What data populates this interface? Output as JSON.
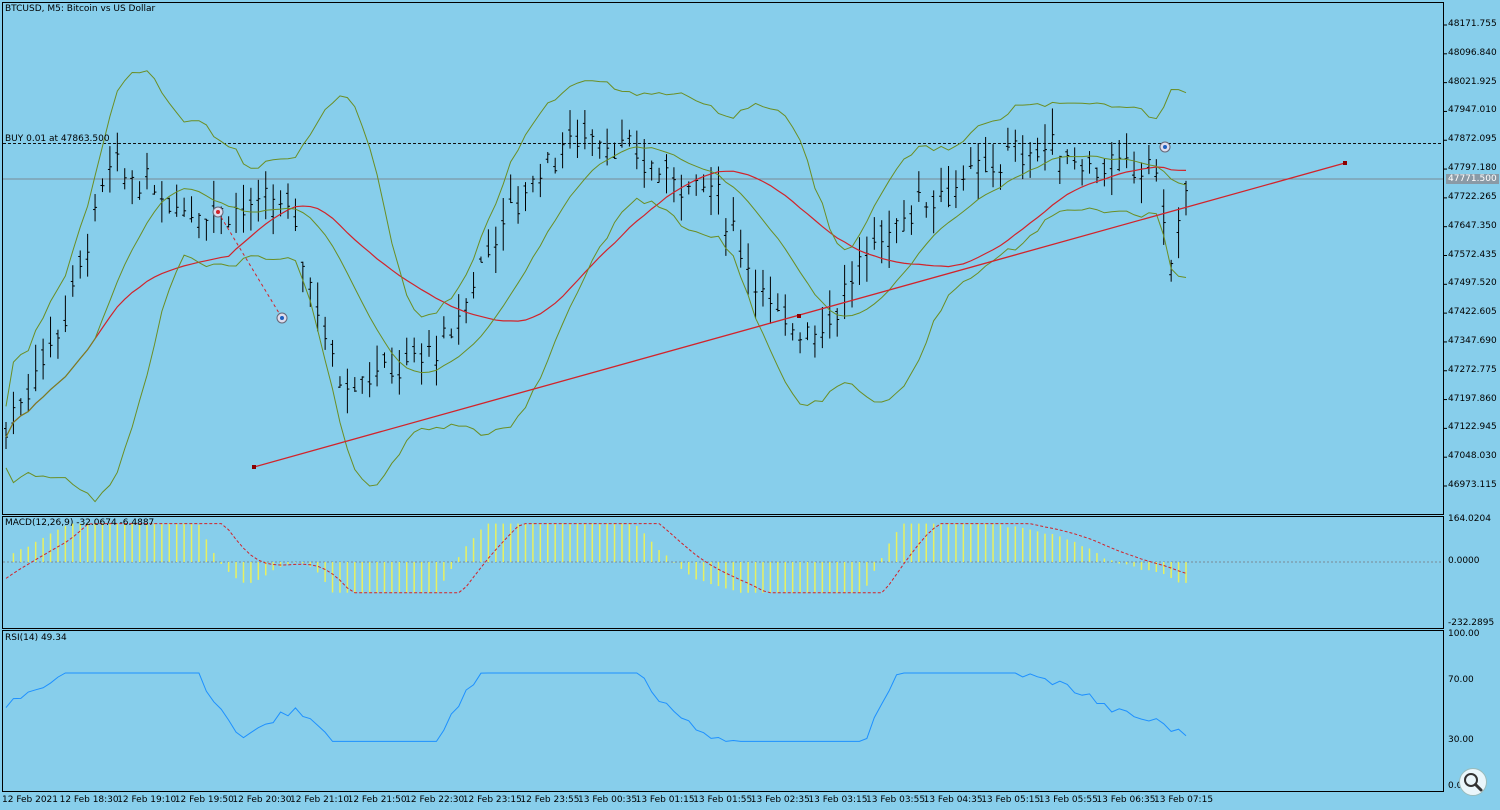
{
  "chart_data": [
    {
      "type": "candlestick",
      "title": "BTCUSD, M5:  Bitcoin vs US Dollar",
      "y_ticks": [
        "48171.755",
        "48096.840",
        "48021.925",
        "47947.010",
        "47872.095",
        "47797.180",
        "47722.265",
        "47647.350",
        "47572.435",
        "47497.520",
        "47422.605",
        "47347.690",
        "47272.775",
        "47197.860",
        "47122.945",
        "47048.030",
        "46973.115"
      ],
      "ylim": [
        46930,
        48210
      ],
      "current_price": "47771.500",
      "order_label": "BUY 0.01 at 47863.500",
      "order_price": 47863.5,
      "x_ticks": [
        "12 Feb 2021",
        "12 Feb 18:30",
        "12 Feb 19:10",
        "12 Feb 19:50",
        "12 Feb 20:30",
        "12 Feb 21:10",
        "12 Feb 21:50",
        "12 Feb 22:30",
        "12 Feb 23:15",
        "12 Feb 23:55",
        "13 Feb 00:35",
        "13 Feb 01:15",
        "13 Feb 01:55",
        "13 Feb 02:35",
        "13 Feb 03:15",
        "13 Feb 03:55",
        "13 Feb 04:35",
        "13 Feb 05:15",
        "13 Feb 05:55",
        "13 Feb 06:35",
        "13 Feb 07:15"
      ],
      "indicators": [
        "Bollinger Bands",
        "Moving Average",
        "Trendline"
      ]
    },
    {
      "type": "histogram",
      "title": "MACD(12,26,9) -32.0674 -6.4887",
      "y_ticks": [
        "164.0204",
        "0.0000",
        "-232.2895"
      ],
      "ylim": [
        -232.2895,
        164.0204
      ]
    },
    {
      "type": "line",
      "title": "RSI(14) 49.34",
      "y_ticks": [
        "100.00",
        "70.00",
        "30.00",
        "0.00"
      ],
      "ylim": [
        0,
        100
      ]
    }
  ],
  "icons": {
    "zoom": "magnifier-icon"
  },
  "colors": {
    "background": "#87CEEB",
    "bollinger": "#6B8E23",
    "ma": "#D2232A",
    "macd_hist": "#E8F060",
    "rsi": "#1E90FF"
  }
}
